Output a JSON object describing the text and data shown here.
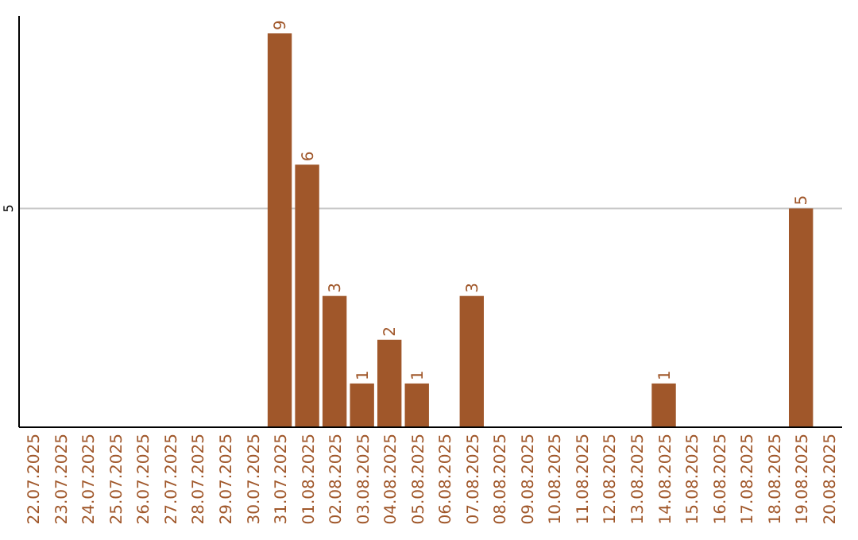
{
  "chart_data": {
    "type": "bar",
    "categories": [
      "22.07.2025",
      "23.07.2025",
      "24.07.2025",
      "25.07.2025",
      "26.07.2025",
      "27.07.2025",
      "28.07.2025",
      "29.07.2025",
      "30.07.2025",
      "31.07.2025",
      "01.08.2025",
      "02.08.2025",
      "03.08.2025",
      "04.08.2025",
      "05.08.2025",
      "06.08.2025",
      "07.08.2025",
      "08.08.2025",
      "09.08.2025",
      "10.08.2025",
      "11.08.2025",
      "12.08.2025",
      "13.08.2025",
      "14.08.2025",
      "15.08.2025",
      "16.08.2025",
      "17.08.2025",
      "18.08.2025",
      "19.08.2025",
      "20.08.2025"
    ],
    "values": [
      0,
      0,
      0,
      0,
      0,
      0,
      0,
      0,
      0,
      9,
      6,
      3,
      1,
      2,
      1,
      0,
      3,
      0,
      0,
      0,
      0,
      0,
      0,
      1,
      0,
      0,
      0,
      0,
      5,
      0
    ],
    "value_labels": [
      null,
      null,
      null,
      null,
      null,
      null,
      null,
      null,
      null,
      "9",
      "6",
      "3",
      "1",
      "2",
      "1",
      null,
      "3",
      null,
      null,
      null,
      null,
      null,
      null,
      "1",
      null,
      null,
      null,
      null,
      "5",
      null
    ],
    "color": "#a0572a",
    "ylim": [
      0,
      9.4
    ],
    "yticks": [
      5
    ],
    "grid": "y"
  }
}
